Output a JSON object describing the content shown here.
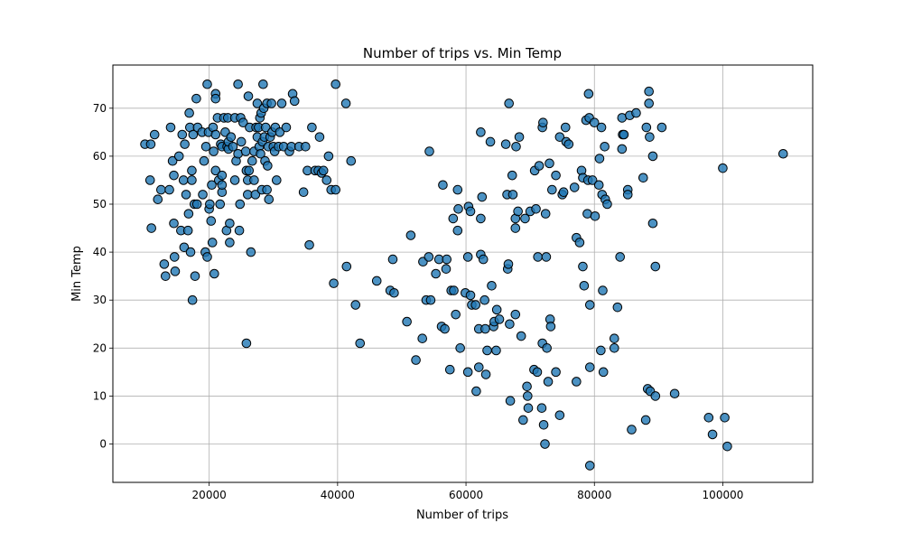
{
  "chart_data": {
    "type": "scatter",
    "title": "Number of trips vs. Min Temp",
    "xlabel": "Number of trips",
    "ylabel": "Min Temp",
    "xlim": [
      5000,
      114000
    ],
    "ylim": [
      -8,
      79
    ],
    "xticks": [
      20000,
      40000,
      60000,
      80000,
      100000
    ],
    "yticks": [
      0,
      10,
      20,
      30,
      40,
      50,
      60,
      70
    ],
    "grid": true,
    "color": "#1f77b4",
    "edgecolor": "#000000",
    "points": [
      [
        10000,
        62.5
      ],
      [
        10800,
        55
      ],
      [
        11000,
        45
      ],
      [
        10900,
        62.5
      ],
      [
        11500,
        64.5
      ],
      [
        12000,
        51
      ],
      [
        12500,
        53
      ],
      [
        13000,
        37.5
      ],
      [
        13200,
        35
      ],
      [
        13800,
        53
      ],
      [
        14000,
        66
      ],
      [
        14300,
        59
      ],
      [
        14500,
        56
      ],
      [
        14500,
        46
      ],
      [
        14600,
        39
      ],
      [
        14700,
        36
      ],
      [
        15300,
        60
      ],
      [
        15600,
        44.5
      ],
      [
        15800,
        64.5
      ],
      [
        16000,
        55
      ],
      [
        16100,
        41
      ],
      [
        16200,
        62.5
      ],
      [
        16400,
        52
      ],
      [
        16700,
        44.5
      ],
      [
        16800,
        48
      ],
      [
        16900,
        69
      ],
      [
        17000,
        66
      ],
      [
        17100,
        40
      ],
      [
        17300,
        57
      ],
      [
        17300,
        55
      ],
      [
        17400,
        30
      ],
      [
        17500,
        64.5
      ],
      [
        17700,
        50
      ],
      [
        17800,
        35
      ],
      [
        18000,
        72
      ],
      [
        18100,
        50
      ],
      [
        18200,
        66
      ],
      [
        18900,
        65
      ],
      [
        19000,
        52
      ],
      [
        19200,
        59
      ],
      [
        19400,
        40
      ],
      [
        19500,
        62
      ],
      [
        19700,
        39
      ],
      [
        19700,
        75
      ],
      [
        19900,
        65
      ],
      [
        20000,
        49
      ],
      [
        20100,
        50
      ],
      [
        20300,
        46.5
      ],
      [
        20400,
        54
      ],
      [
        20500,
        42
      ],
      [
        20600,
        66
      ],
      [
        20700,
        61
      ],
      [
        20800,
        35.5
      ],
      [
        21000,
        64.5
      ],
      [
        21000,
        73
      ],
      [
        21000,
        57
      ],
      [
        21000,
        72
      ],
      [
        21300,
        68
      ],
      [
        21500,
        55
      ],
      [
        21700,
        50
      ],
      [
        21800,
        62.5
      ],
      [
        22000,
        62
      ],
      [
        22000,
        52.5
      ],
      [
        22000,
        54
      ],
      [
        22000,
        56
      ],
      [
        22300,
        68
      ],
      [
        22500,
        65
      ],
      [
        22700,
        44.5
      ],
      [
        22800,
        62
      ],
      [
        22900,
        68
      ],
      [
        23000,
        61.5
      ],
      [
        23000,
        63
      ],
      [
        23200,
        46
      ],
      [
        23200,
        42
      ],
      [
        23400,
        64
      ],
      [
        23700,
        62
      ],
      [
        24000,
        68
      ],
      [
        24000,
        55
      ],
      [
        24200,
        59
      ],
      [
        24500,
        75
      ],
      [
        24500,
        60.5
      ],
      [
        24700,
        44.5
      ],
      [
        24800,
        50
      ],
      [
        24900,
        68
      ],
      [
        25000,
        63
      ],
      [
        25300,
        67
      ],
      [
        25700,
        61
      ],
      [
        25800,
        57
      ],
      [
        25800,
        21
      ],
      [
        26000,
        55
      ],
      [
        26000,
        52
      ],
      [
        26100,
        72.5
      ],
      [
        26200,
        57
      ],
      [
        26300,
        66
      ],
      [
        26500,
        40
      ],
      [
        26700,
        59
      ],
      [
        27000,
        61
      ],
      [
        27000,
        55
      ],
      [
        27200,
        52
      ],
      [
        27300,
        66
      ],
      [
        27500,
        71
      ],
      [
        27500,
        64
      ],
      [
        27700,
        66
      ],
      [
        27800,
        62
      ],
      [
        27900,
        68
      ],
      [
        28000,
        60.5
      ],
      [
        28100,
        69
      ],
      [
        28200,
        53
      ],
      [
        28300,
        63
      ],
      [
        28400,
        75
      ],
      [
        28500,
        70
      ],
      [
        28600,
        64
      ],
      [
        28700,
        59
      ],
      [
        28800,
        66
      ],
      [
        29000,
        71
      ],
      [
        29000,
        53
      ],
      [
        29100,
        58
      ],
      [
        29200,
        62
      ],
      [
        29300,
        51
      ],
      [
        29500,
        64
      ],
      [
        29700,
        71
      ],
      [
        29800,
        65
      ],
      [
        30000,
        62
      ],
      [
        30200,
        61
      ],
      [
        30300,
        66
      ],
      [
        30500,
        55
      ],
      [
        30800,
        62
      ],
      [
        31000,
        65
      ],
      [
        31300,
        71
      ],
      [
        31600,
        62
      ],
      [
        32000,
        66
      ],
      [
        32500,
        61
      ],
      [
        32800,
        62
      ],
      [
        33000,
        73
      ],
      [
        33300,
        71.5
      ],
      [
        34000,
        62
      ],
      [
        34700,
        52.5
      ],
      [
        35000,
        62
      ],
      [
        35300,
        57
      ],
      [
        35600,
        41.5
      ],
      [
        36000,
        66
      ],
      [
        36500,
        57
      ],
      [
        37000,
        57
      ],
      [
        37200,
        64
      ],
      [
        37500,
        56.5
      ],
      [
        37800,
        57
      ],
      [
        38300,
        55
      ],
      [
        38600,
        60
      ],
      [
        39000,
        53
      ],
      [
        39400,
        33.5
      ],
      [
        39700,
        75
      ],
      [
        39700,
        53
      ],
      [
        41300,
        71
      ],
      [
        41400,
        37
      ],
      [
        42100,
        59
      ],
      [
        42800,
        29
      ],
      [
        43500,
        21
      ],
      [
        46100,
        34
      ],
      [
        48200,
        32
      ],
      [
        48600,
        38.5
      ],
      [
        48800,
        31.5
      ],
      [
        50800,
        25.5
      ],
      [
        51400,
        43.5
      ],
      [
        52200,
        17.5
      ],
      [
        53200,
        22
      ],
      [
        53300,
        38
      ],
      [
        53800,
        30
      ],
      [
        54200,
        39
      ],
      [
        54300,
        61
      ],
      [
        54500,
        30
      ],
      [
        55300,
        35.5
      ],
      [
        55800,
        38.5
      ],
      [
        56200,
        24.5
      ],
      [
        56400,
        54
      ],
      [
        56700,
        24
      ],
      [
        56900,
        36.5
      ],
      [
        57000,
        38.5
      ],
      [
        57500,
        15.5
      ],
      [
        57700,
        32
      ],
      [
        58000,
        47
      ],
      [
        58100,
        32
      ],
      [
        58400,
        27
      ],
      [
        58700,
        44.5
      ],
      [
        58700,
        53
      ],
      [
        58800,
        49
      ],
      [
        59100,
        20
      ],
      [
        59900,
        31.5
      ],
      [
        60300,
        15
      ],
      [
        60300,
        39
      ],
      [
        60400,
        49.5
      ],
      [
        60700,
        31
      ],
      [
        60700,
        48.5
      ],
      [
        60900,
        29
      ],
      [
        61500,
        29
      ],
      [
        61600,
        11
      ],
      [
        62000,
        16
      ],
      [
        62000,
        24
      ],
      [
        62300,
        65
      ],
      [
        62300,
        47
      ],
      [
        62300,
        39.5
      ],
      [
        62500,
        51.5
      ],
      [
        62700,
        38.5
      ],
      [
        62900,
        30
      ],
      [
        63000,
        24
      ],
      [
        63100,
        14.5
      ],
      [
        63300,
        19.5
      ],
      [
        63800,
        63
      ],
      [
        64000,
        33
      ],
      [
        64300,
        24.5
      ],
      [
        64400,
        25.5
      ],
      [
        64700,
        19.5
      ],
      [
        64800,
        28
      ],
      [
        65200,
        26
      ],
      [
        66200,
        62.5
      ],
      [
        66400,
        52
      ],
      [
        66500,
        36.5
      ],
      [
        66600,
        37.5
      ],
      [
        66700,
        71
      ],
      [
        66800,
        25
      ],
      [
        66900,
        9
      ],
      [
        67200,
        56
      ],
      [
        67300,
        52
      ],
      [
        67700,
        27
      ],
      [
        67700,
        47
      ],
      [
        67700,
        45
      ],
      [
        67800,
        62
      ],
      [
        68100,
        48.5
      ],
      [
        68300,
        64
      ],
      [
        68600,
        22.5
      ],
      [
        68900,
        5
      ],
      [
        69200,
        47
      ],
      [
        69500,
        12
      ],
      [
        69600,
        10
      ],
      [
        69700,
        7.5
      ],
      [
        70000,
        48.5
      ],
      [
        70600,
        15.5
      ],
      [
        70700,
        57
      ],
      [
        70900,
        49
      ],
      [
        71100,
        15
      ],
      [
        71200,
        39
      ],
      [
        71400,
        58
      ],
      [
        71800,
        7.5
      ],
      [
        71900,
        66
      ],
      [
        71900,
        21
      ],
      [
        72000,
        67
      ],
      [
        72100,
        4
      ],
      [
        72300,
        0
      ],
      [
        72400,
        48
      ],
      [
        72500,
        39
      ],
      [
        72600,
        20
      ],
      [
        72800,
        13
      ],
      [
        73000,
        58.5
      ],
      [
        73100,
        26
      ],
      [
        73200,
        24.5
      ],
      [
        73400,
        53
      ],
      [
        74000,
        56
      ],
      [
        74000,
        15
      ],
      [
        74600,
        64
      ],
      [
        74600,
        6
      ],
      [
        75000,
        52
      ],
      [
        75200,
        52.5
      ],
      [
        75500,
        66
      ],
      [
        75600,
        63
      ],
      [
        76000,
        62.5
      ],
      [
        76900,
        53.5
      ],
      [
        77200,
        43
      ],
      [
        77200,
        13
      ],
      [
        77700,
        42
      ],
      [
        78000,
        57
      ],
      [
        78200,
        55.5
      ],
      [
        78200,
        37
      ],
      [
        78400,
        33
      ],
      [
        78700,
        67.5
      ],
      [
        78900,
        48
      ],
      [
        79000,
        55
      ],
      [
        79100,
        73
      ],
      [
        79200,
        68
      ],
      [
        79300,
        29
      ],
      [
        79300,
        16
      ],
      [
        79300,
        -4.5
      ],
      [
        79700,
        55
      ],
      [
        80000,
        67
      ],
      [
        80100,
        47.5
      ],
      [
        80700,
        54
      ],
      [
        80800,
        59.5
      ],
      [
        81000,
        19.5
      ],
      [
        81100,
        66
      ],
      [
        81200,
        52
      ],
      [
        81300,
        32
      ],
      [
        81400,
        15
      ],
      [
        81600,
        62
      ],
      [
        81700,
        51
      ],
      [
        82000,
        50
      ],
      [
        83100,
        20
      ],
      [
        83100,
        22
      ],
      [
        83600,
        28.5
      ],
      [
        84000,
        39
      ],
      [
        84300,
        68
      ],
      [
        84300,
        61.5
      ],
      [
        84400,
        64.5
      ],
      [
        84600,
        64.5
      ],
      [
        85200,
        53
      ],
      [
        85200,
        52
      ],
      [
        85500,
        68.5
      ],
      [
        85800,
        3
      ],
      [
        86500,
        69
      ],
      [
        87600,
        55.5
      ],
      [
        88000,
        5
      ],
      [
        88100,
        66
      ],
      [
        88300,
        11.5
      ],
      [
        88500,
        71
      ],
      [
        88500,
        73.5
      ],
      [
        88600,
        64
      ],
      [
        88700,
        11
      ],
      [
        89100,
        60
      ],
      [
        89100,
        46
      ],
      [
        89500,
        37
      ],
      [
        89500,
        10
      ],
      [
        90500,
        66
      ],
      [
        92500,
        10.5
      ],
      [
        97800,
        5.5
      ],
      [
        98400,
        2
      ],
      [
        100000,
        57.5
      ],
      [
        100300,
        5.5
      ],
      [
        100700,
        -0.5
      ],
      [
        109400,
        60.5
      ]
    ]
  }
}
